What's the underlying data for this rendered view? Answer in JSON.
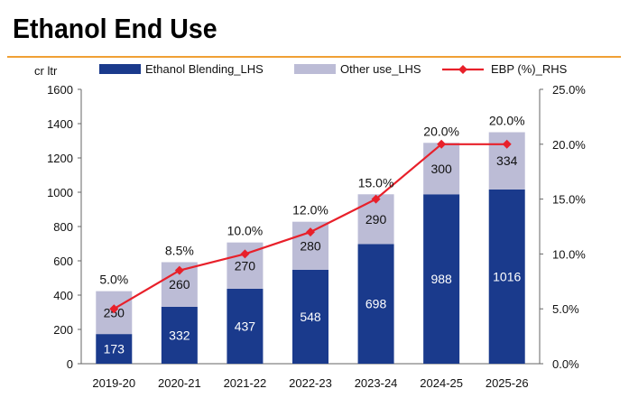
{
  "header": {
    "title": "Ethanol End Use"
  },
  "chart_data": {
    "type": "bar",
    "stacked": true,
    "categories": [
      "2019-20",
      "2020-21",
      "2021-22",
      "2022-23",
      "2023-24",
      "2024-25",
      "2025-26"
    ],
    "series": [
      {
        "name": "Ethanol Blending_LHS",
        "type": "bar",
        "axis": "left",
        "color": "#1a3a8c",
        "values": [
          173,
          332,
          437,
          548,
          698,
          988,
          1016
        ]
      },
      {
        "name": "Other use_LHS",
        "type": "bar",
        "axis": "left",
        "color": "#bcbcd6",
        "values": [
          250,
          260,
          270,
          280,
          290,
          300,
          334
        ]
      },
      {
        "name": "EBP (%)_RHS",
        "type": "line",
        "axis": "right",
        "color": "#e8202a",
        "values": [
          5.0,
          8.5,
          10.0,
          12.0,
          15.0,
          20.0,
          20.0
        ],
        "labels": [
          "5.0%",
          "8.5%",
          "10.0%",
          "12.0%",
          "15.0%",
          "20.0%",
          "20.0%"
        ]
      }
    ],
    "ylabel": "cr ltr",
    "ylim": [
      0,
      1600
    ],
    "y_ticks": [
      0,
      200,
      400,
      600,
      800,
      1000,
      1200,
      1400,
      1600
    ],
    "y2lim": [
      0,
      25
    ],
    "y2_ticks": [
      "0.0%",
      "5.0%",
      "10.0%",
      "15.0%",
      "20.0%",
      "25.0%"
    ],
    "grid": false,
    "legend": "top"
  }
}
